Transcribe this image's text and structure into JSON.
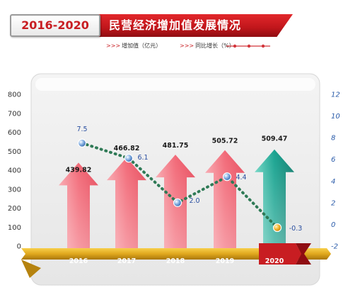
{
  "banner": {
    "years": "2016-2020",
    "title": "民营经济增加值发展情况"
  },
  "legend": {
    "bar_label": "增加值（亿元）",
    "line_label": "同比增长（%）",
    "prefix": ">>>"
  },
  "colors": {
    "arrow_pink": "#f26a78",
    "arrow_teal": "#19a390",
    "line_green": "#2f7a56",
    "ribbon_gold": "#e0a81e",
    "ribbon_red": "#c81d22",
    "left_axis": "#333333",
    "right_axis": "#2b5caa"
  },
  "chart_data": {
    "type": "bar",
    "categories": [
      "2016",
      "2017",
      "2018",
      "2019",
      "2020"
    ],
    "series": [
      {
        "name": "增加值（亿元）",
        "values": [
          439.82,
          466.82,
          481.75,
          505.72,
          509.47
        ],
        "axis": "left"
      },
      {
        "name": "同比增长（%）",
        "type": "line",
        "values": [
          7.5,
          6.1,
          2.0,
          4.4,
          -0.3
        ],
        "axis": "right"
      }
    ],
    "y_left": {
      "min": 0,
      "max": 800,
      "ticks": [
        "0",
        "100",
        "200",
        "300",
        "400",
        "500",
        "600",
        "700",
        "800"
      ]
    },
    "y_right": {
      "min": -2,
      "max": 12,
      "ticks": [
        "-2",
        "0",
        "2",
        "4",
        "6",
        "8",
        "10",
        "12"
      ]
    },
    "highlight_category": "2020",
    "value_labels": [
      "439.82",
      "466.82",
      "481.75",
      "505.72",
      "509.47"
    ],
    "growth_labels": [
      "7.5",
      "6.1",
      "2.0",
      "4.4",
      "-0.3"
    ]
  }
}
